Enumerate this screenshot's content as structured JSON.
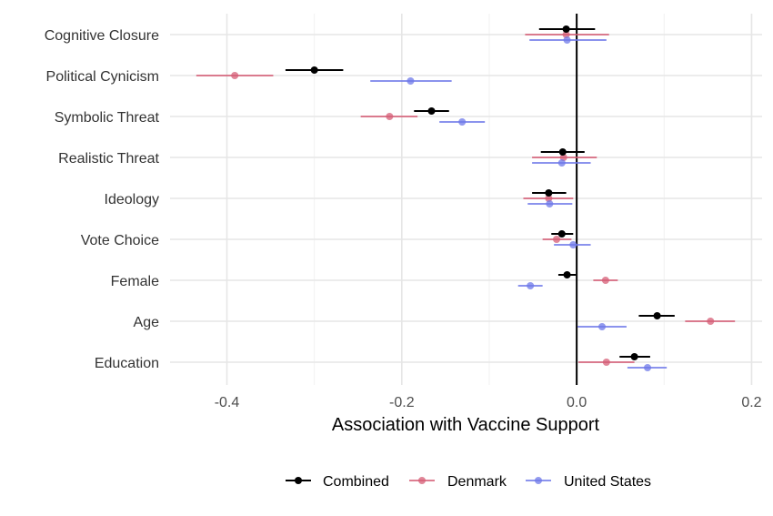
{
  "chart_data": {
    "type": "scatter",
    "subtype": "forest-plot",
    "title": "",
    "xlabel": "Association with Vaccine Support",
    "ylabel": "",
    "xlim": [
      -0.465,
      0.212
    ],
    "x_ticks": [
      -0.4,
      -0.2,
      0.0,
      0.2
    ],
    "x_tick_labels": [
      "-0.4",
      "-0.2",
      "0.0",
      "0.2"
    ],
    "reference_line_x": 0,
    "grid": true,
    "legend_position": "bottom",
    "categories": [
      "Cognitive Closure",
      "Political Cynicism",
      "Symbolic Threat",
      "Realistic Threat",
      "Ideology",
      "Vote Choice",
      "Female",
      "Age",
      "Education"
    ],
    "series": [
      {
        "name": "Combined",
        "color": "#000000",
        "estimates": [
          -0.012,
          -0.3,
          -0.166,
          -0.016,
          -0.032,
          -0.017,
          -0.011,
          0.092,
          0.066
        ],
        "ci_low": [
          -0.043,
          -0.333,
          -0.186,
          -0.041,
          -0.051,
          -0.029,
          -0.021,
          0.071,
          0.049
        ],
        "ci_high": [
          0.021,
          -0.267,
          -0.146,
          0.009,
          -0.012,
          -0.004,
          -0.001,
          0.112,
          0.084
        ]
      },
      {
        "name": "Denmark",
        "color": "#d55e75",
        "estimates": [
          -0.012,
          -0.391,
          -0.214,
          -0.015,
          -0.032,
          -0.023,
          0.033,
          0.153,
          0.034
        ],
        "ci_low": [
          -0.059,
          -0.435,
          -0.247,
          -0.051,
          -0.061,
          -0.039,
          0.019,
          0.124,
          0.002
        ],
        "ci_high": [
          0.037,
          -0.347,
          -0.182,
          0.023,
          -0.004,
          -0.006,
          0.047,
          0.181,
          0.066
        ]
      },
      {
        "name": "United States",
        "color": "#6e78e8",
        "estimates": [
          -0.011,
          -0.19,
          -0.131,
          -0.017,
          -0.031,
          -0.004,
          -0.053,
          0.029,
          0.081
        ],
        "ci_low": [
          -0.054,
          -0.236,
          -0.157,
          -0.051,
          -0.056,
          -0.026,
          -0.067,
          0.001,
          0.058
        ],
        "ci_high": [
          0.034,
          -0.143,
          -0.105,
          0.016,
          -0.005,
          0.016,
          -0.039,
          0.057,
          0.103
        ]
      }
    ]
  }
}
